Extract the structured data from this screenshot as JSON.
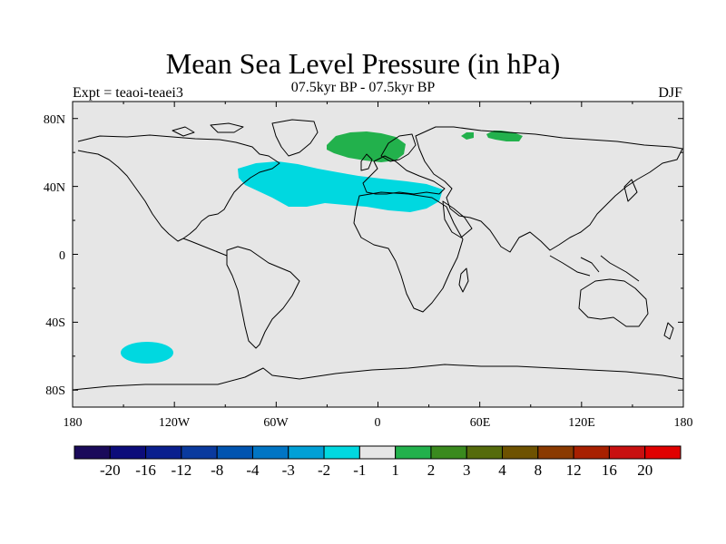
{
  "title": "Mean Sea Level Pressure (in hPa)",
  "subtitle": "07.5kyr BP - 07.5kyr BP",
  "left_label": "Expt = teaoi-teaei3",
  "right_label": "DJF",
  "map": {
    "projection": "cylindrical equidistant",
    "lon_range": [
      -180,
      180
    ],
    "lat_range": [
      -90,
      90
    ],
    "background_color": "#e6e6e6",
    "coastline_color": "#000000",
    "lon_ticks": [
      "180",
      "120W",
      "60W",
      "0",
      "60E",
      "120E",
      "180"
    ],
    "lat_ticks": [
      "80N",
      "40N",
      "0",
      "40S",
      "80S"
    ],
    "anomalies": [
      {
        "region": "North Atlantic / Mediterranean",
        "range": "-2 to -1",
        "color": "#00d8e0"
      },
      {
        "region": "Southern Ocean (South Pacific)",
        "range": "-2 to -1",
        "color": "#00d8e0"
      },
      {
        "region": "Nordic Seas / Scandinavia",
        "range": "1 to 2",
        "color": "#22b14c"
      },
      {
        "region": "Barents / Kara Sea",
        "range": "1 to 2",
        "color": "#22b14c"
      }
    ]
  },
  "colorbar": {
    "labels": [
      "-20",
      "-16",
      "-12",
      "-8",
      "-4",
      "-3",
      "-2",
      "-1",
      "1",
      "2",
      "3",
      "4",
      "8",
      "12",
      "16",
      "20"
    ],
    "colors": [
      "#1a0a5a",
      "#0c0c7a",
      "#0a1f8e",
      "#0a3a9e",
      "#0054b0",
      "#0075c4",
      "#00a0d6",
      "#00d8e0",
      "#e6e6e6",
      "#22b14c",
      "#3a8a1e",
      "#556b0c",
      "#6e5200",
      "#8a3a00",
      "#a82000",
      "#c81010",
      "#e00000"
    ]
  }
}
